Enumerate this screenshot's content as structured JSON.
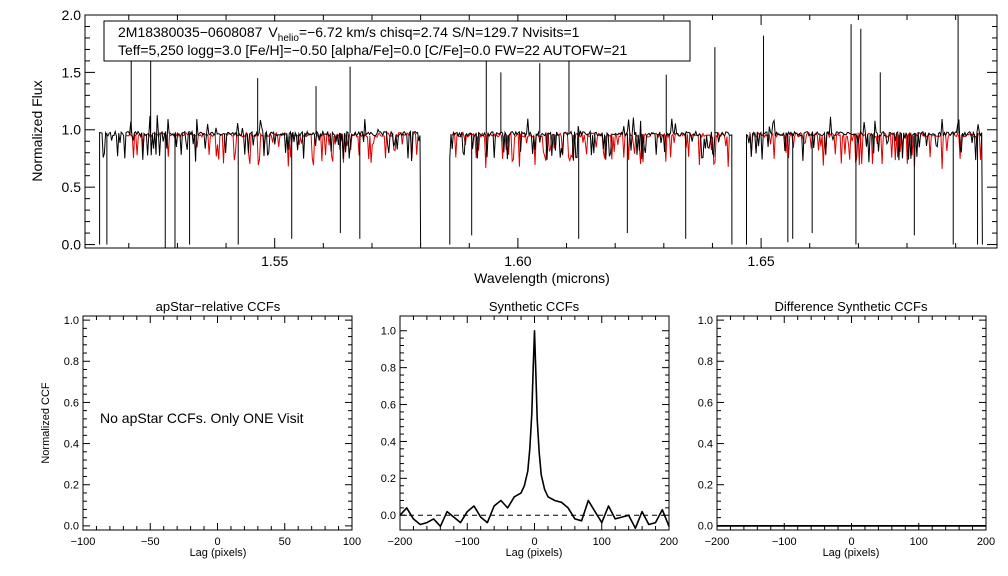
{
  "top_panel": {
    "info_line1": {
      "star_id": "2M18380035−0608087",
      "v_letter": "V",
      "v_subscript": "helio",
      "v_rest": "=−6.72 km/s  chisq=2.74  S/N=129.7  Nvisits=1"
    },
    "info_line2": "Teff=5,250 logg=3.0 [Fe/H]=−0.50 [alpha/Fe]=0.0 [C/Fe]=0.0 FW=22 AUTOFW=21"
  },
  "chart_data": [
    {
      "id": "spectrum",
      "type": "line",
      "title": "",
      "xlabel": "Wavelength (microns)",
      "ylabel": "Normalized Flux",
      "xlim": [
        1.511,
        1.6985
      ],
      "ylim": [
        -0.03,
        2.0
      ],
      "xticks": [
        {
          "v": 1.55,
          "label": "1.55"
        },
        {
          "v": 1.6,
          "label": "1.60"
        },
        {
          "v": 1.65,
          "label": "1.65"
        }
      ],
      "yticks": [
        {
          "v": 0.0,
          "label": "0.0"
        },
        {
          "v": 0.5,
          "label": "0.5"
        },
        {
          "v": 1.0,
          "label": "1.0"
        },
        {
          "v": 1.5,
          "label": "1.5"
        },
        {
          "v": 2.0,
          "label": "2.0"
        }
      ],
      "series": [
        {
          "name": "observed",
          "color": "#000000",
          "chips": [
            [
              1.514,
              1.58
            ],
            [
              1.586,
              1.644
            ],
            [
              1.647,
              1.6955
            ]
          ]
        },
        {
          "name": "model",
          "color": "#e00000",
          "chips": [
            [
              1.5195,
              1.5795
            ],
            [
              1.5865,
              1.6435
            ],
            [
              1.6475,
              1.6955
            ]
          ]
        }
      ],
      "features": [
        {
          "x": 1.5275,
          "y": -0.03
        },
        {
          "x": 1.5295,
          "y": -0.03
        },
        {
          "x": 1.5325,
          "y": 0.0
        },
        {
          "x": 1.5425,
          "y": 0.0
        },
        {
          "x": 1.5535,
          "y": 0.05
        },
        {
          "x": 1.5635,
          "y": 0.1
        },
        {
          "x": 1.5675,
          "y": 0.05
        },
        {
          "x": 1.5155,
          "y": 0.0
        },
        {
          "x": 1.5905,
          "y": 0.08
        },
        {
          "x": 1.6125,
          "y": 0.05
        },
        {
          "x": 1.6225,
          "y": 0.1
        },
        {
          "x": 1.6345,
          "y": 0.05
        },
        {
          "x": 1.6555,
          "y": 0.02
        },
        {
          "x": 1.6565,
          "y": 0.05
        },
        {
          "x": 1.6605,
          "y": 0.1
        },
        {
          "x": 1.6695,
          "y": 0.0
        },
        {
          "x": 1.6815,
          "y": 0.08
        },
        {
          "x": 1.6895,
          "y": 0.0
        },
        {
          "x": 1.6945,
          "y": 0.0
        },
        {
          "x": 1.5205,
          "y": 1.75
        },
        {
          "x": 1.5245,
          "y": 1.62
        },
        {
          "x": 1.5465,
          "y": 1.45
        },
        {
          "x": 1.5585,
          "y": 1.38
        },
        {
          "x": 1.5655,
          "y": 1.55
        },
        {
          "x": 1.5935,
          "y": 1.68
        },
        {
          "x": 1.5965,
          "y": 1.5
        },
        {
          "x": 1.6045,
          "y": 1.58
        },
        {
          "x": 1.6105,
          "y": 1.9
        },
        {
          "x": 1.6305,
          "y": 1.48
        },
        {
          "x": 1.6405,
          "y": 1.72
        },
        {
          "x": 1.6505,
          "y": 1.82
        },
        {
          "x": 1.6685,
          "y": 1.92
        },
        {
          "x": 1.6705,
          "y": 1.88
        },
        {
          "x": 1.6745,
          "y": 1.5
        },
        {
          "x": 1.6905,
          "y": 2.0
        }
      ]
    },
    {
      "id": "apstar_ccf",
      "type": "line",
      "title": "apStar−relative CCFs",
      "xlabel": "Lag (pixels)",
      "ylabel": "Normalized CCF",
      "xlim": [
        -100,
        100
      ],
      "ylim": [
        -0.02,
        1.02
      ],
      "xticks": [
        {
          "v": -100,
          "label": "−100"
        },
        {
          "v": -50,
          "label": "−50"
        },
        {
          "v": 0,
          "label": "0"
        },
        {
          "v": 50,
          "label": "50"
        },
        {
          "v": 100,
          "label": "100"
        }
      ],
      "yticks": [
        {
          "v": 0.0,
          "label": "0.0"
        },
        {
          "v": 0.2,
          "label": "0.2"
        },
        {
          "v": 0.4,
          "label": "0.4"
        },
        {
          "v": 0.6,
          "label": "0.6"
        },
        {
          "v": 0.8,
          "label": "0.8"
        },
        {
          "v": 1.0,
          "label": "1.0"
        }
      ],
      "annotation": "No apStar CCFs.  Only ONE Visit",
      "series": []
    },
    {
      "id": "synthetic_ccf",
      "type": "line",
      "title": "Synthetic CCFs",
      "xlabel": "Lag (pixels)",
      "ylabel": "",
      "xlim": [
        -200,
        200
      ],
      "ylim": [
        -0.08,
        1.08
      ],
      "xticks": [
        {
          "v": -200,
          "label": "−200"
        },
        {
          "v": -100,
          "label": "−100"
        },
        {
          "v": 0,
          "label": "0"
        },
        {
          "v": 100,
          "label": "100"
        },
        {
          "v": 200,
          "label": "200"
        }
      ],
      "yticks": [
        {
          "v": 0.0,
          "label": "0.0"
        },
        {
          "v": 0.2,
          "label": "0.2"
        },
        {
          "v": 0.4,
          "label": "0.4"
        },
        {
          "v": 0.6,
          "label": "0.6"
        },
        {
          "v": 0.8,
          "label": "0.8"
        },
        {
          "v": 1.0,
          "label": "1.0"
        }
      ],
      "reference_line": {
        "y": 0.0,
        "style": "dashed"
      },
      "series": [
        {
          "name": "ccf",
          "color": "#000000",
          "x": [
            -200,
            -190,
            -180,
            -170,
            -160,
            -150,
            -140,
            -130,
            -120,
            -110,
            -100,
            -90,
            -80,
            -70,
            -60,
            -50,
            -40,
            -30,
            -20,
            -15,
            -10,
            -7,
            -4,
            -2,
            0,
            2,
            4,
            7,
            10,
            15,
            20,
            30,
            40,
            50,
            60,
            70,
            80,
            90,
            100,
            110,
            120,
            130,
            140,
            150,
            160,
            170,
            180,
            190,
            200
          ],
          "values": [
            0.0,
            0.04,
            -0.02,
            -0.05,
            -0.04,
            -0.02,
            -0.06,
            0.02,
            -0.01,
            -0.04,
            0.02,
            0.05,
            -0.01,
            -0.04,
            0.05,
            0.08,
            0.04,
            0.1,
            0.12,
            0.16,
            0.24,
            0.36,
            0.55,
            0.8,
            1.0,
            0.78,
            0.52,
            0.34,
            0.22,
            0.14,
            0.1,
            0.08,
            0.07,
            0.04,
            -0.02,
            -0.03,
            0.08,
            0.02,
            -0.04,
            0.05,
            -0.02,
            -0.01,
            0.0,
            -0.07,
            0.02,
            -0.05,
            -0.04,
            0.03,
            -0.06
          ]
        }
      ]
    },
    {
      "id": "difference_ccf",
      "type": "line",
      "title": "Difference Synthetic CCFs",
      "xlabel": "Lag (pixels)",
      "ylabel": "",
      "xlim": [
        -200,
        200
      ],
      "ylim": [
        -0.02,
        1.02
      ],
      "xticks": [
        {
          "v": -200,
          "label": "−200"
        },
        {
          "v": -100,
          "label": "−100"
        },
        {
          "v": 0,
          "label": "0"
        },
        {
          "v": 100,
          "label": "100"
        },
        {
          "v": 200,
          "label": "200"
        }
      ],
      "yticks": [
        {
          "v": 0.0,
          "label": "0.0"
        },
        {
          "v": 0.2,
          "label": "0.2"
        },
        {
          "v": 0.4,
          "label": "0.4"
        },
        {
          "v": 0.6,
          "label": "0.6"
        },
        {
          "v": 0.8,
          "label": "0.8"
        },
        {
          "v": 1.0,
          "label": "1.0"
        }
      ],
      "series": [
        {
          "name": "difference",
          "color": "#000000",
          "x": [
            -200,
            200
          ],
          "values": [
            0.0,
            0.0
          ]
        }
      ]
    }
  ]
}
